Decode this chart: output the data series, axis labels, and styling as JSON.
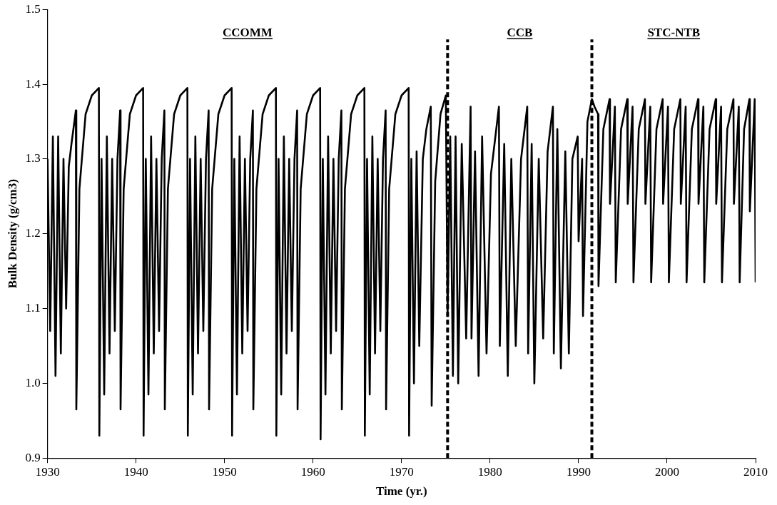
{
  "chart_data": {
    "type": "line",
    "xlabel": "Time (yr.)",
    "ylabel": "Bulk Density (g/cm3)",
    "annotations": [
      "CCOMM",
      "CCB",
      "STC-NTB"
    ],
    "xlim": [
      1930,
      2010
    ],
    "xticks": [
      1930,
      1940,
      1950,
      1960,
      1970,
      1980,
      1990,
      2000,
      2010
    ],
    "ylim": [
      0.9,
      1.5
    ],
    "yticks": [
      0.9,
      {
        "value": 1,
        "label": "1.0"
      },
      1.1,
      1.2,
      1.3,
      1.4,
      1.5
    ],
    "grid": false,
    "legend": false,
    "marker": "none",
    "line_style": "solid",
    "ref_lines": [
      {
        "axis": "x",
        "value": 1975.2,
        "line_style": "dashed",
        "color": "#000000"
      },
      {
        "axis": "x",
        "value": 1991.5,
        "line_style": "dashed",
        "color": "#000000"
      }
    ],
    "series": [
      {
        "color": "#000000",
        "x": [
          1930,
          1930.3,
          1930.6,
          1930.9,
          1931.2,
          1931.5,
          1931.8,
          1932.1,
          1932.4,
          1932.7,
          1933.2,
          1933.25,
          1933.6,
          1934.3,
          1935,
          1935.8,
          1935.85,
          1936.1,
          1936.4,
          1936.7,
          1937,
          1937.3,
          1937.6,
          1937.9,
          1938.2,
          1938.25,
          1938.6,
          1939.3,
          1940,
          1940.8,
          1940.85,
          1941.1,
          1941.4,
          1941.7,
          1942,
          1942.3,
          1942.6,
          1942.9,
          1943.2,
          1943.25,
          1943.6,
          1944.3,
          1945,
          1945.8,
          1945.85,
          1946.1,
          1946.4,
          1946.7,
          1947,
          1947.3,
          1947.6,
          1947.9,
          1948.2,
          1948.25,
          1948.6,
          1949.3,
          1950,
          1950.8,
          1950.85,
          1951.1,
          1951.4,
          1951.7,
          1952,
          1952.3,
          1952.6,
          1952.9,
          1953.2,
          1953.25,
          1953.6,
          1954.3,
          1955,
          1955.8,
          1955.85,
          1956.1,
          1956.4,
          1956.7,
          1957,
          1957.3,
          1957.6,
          1957.9,
          1958.2,
          1958.25,
          1958.6,
          1959.3,
          1960,
          1960.8,
          1960.85,
          1961.1,
          1961.4,
          1961.7,
          1962,
          1962.3,
          1962.6,
          1962.9,
          1963.2,
          1963.25,
          1963.6,
          1964.3,
          1965,
          1965.8,
          1965.85,
          1966.1,
          1966.4,
          1966.7,
          1967,
          1967.3,
          1967.6,
          1967.9,
          1968.2,
          1968.25,
          1968.6,
          1969.3,
          1970,
          1970.8,
          1970.85,
          1971.1,
          1971.4,
          1971.7,
          1972,
          1972.4,
          1972.8,
          1973.3,
          1973.4,
          1973.8,
          1974.4,
          1975,
          1975.2,
          1975.5,
          1975.8,
          1976.1,
          1976.4,
          1976.8,
          1977.3,
          1977.8,
          1977.9,
          1978.3,
          1978.7,
          1979.1,
          1979.6,
          1980.1,
          1981,
          1981.1,
          1981.6,
          1982,
          1982.4,
          1982.9,
          1983.5,
          1984.2,
          1984.3,
          1984.7,
          1985,
          1985.5,
          1986,
          1986.5,
          1987.1,
          1987.2,
          1987.6,
          1988,
          1988.5,
          1988.9,
          1989.3,
          1989.9,
          1990,
          1990.4,
          1990.5,
          1991,
          1991.5,
          1991.8,
          1992.2,
          1992.25,
          1992.8,
          1993.5,
          1993.55,
          1994.1,
          1994.2,
          1994.8,
          1995.5,
          1995.55,
          1996.1,
          1996.2,
          1996.8,
          1997.5,
          1997.55,
          1998.1,
          1998.2,
          1998.8,
          1999.5,
          1999.55,
          2000.1,
          2000.2,
          2000.8,
          2001.5,
          2001.55,
          2002.1,
          2002.2,
          2002.8,
          2003.5,
          2003.55,
          2004.1,
          2004.2,
          2004.8,
          2005.5,
          2005.55,
          2006.1,
          2006.2,
          2006.8,
          2007.5,
          2007.55,
          2008.1,
          2008.2,
          2008.7,
          2009.3,
          2009.35,
          2009.9,
          2010
        ],
        "values": [
          1.3,
          1.07,
          1.33,
          1.01,
          1.33,
          1.04,
          1.3,
          1.1,
          1.29,
          1.32,
          1.365,
          0.965,
          1.26,
          1.36,
          1.385,
          1.395,
          0.93,
          1.3,
          0.985,
          1.33,
          1.04,
          1.3,
          1.07,
          1.3,
          1.365,
          0.965,
          1.26,
          1.36,
          1.385,
          1.395,
          0.93,
          1.3,
          0.985,
          1.33,
          1.04,
          1.3,
          1.07,
          1.3,
          1.365,
          0.965,
          1.26,
          1.36,
          1.385,
          1.395,
          0.93,
          1.3,
          0.985,
          1.33,
          1.04,
          1.3,
          1.07,
          1.3,
          1.365,
          0.965,
          1.26,
          1.36,
          1.385,
          1.395,
          0.93,
          1.3,
          0.985,
          1.33,
          1.04,
          1.3,
          1.07,
          1.3,
          1.365,
          0.965,
          1.26,
          1.36,
          1.385,
          1.395,
          0.93,
          1.3,
          0.985,
          1.33,
          1.04,
          1.3,
          1.07,
          1.3,
          1.365,
          0.965,
          1.26,
          1.36,
          1.385,
          1.395,
          0.925,
          1.3,
          0.985,
          1.33,
          1.04,
          1.3,
          1.07,
          1.3,
          1.365,
          0.965,
          1.26,
          1.36,
          1.385,
          1.395,
          0.93,
          1.3,
          0.985,
          1.33,
          1.04,
          1.3,
          1.07,
          1.3,
          1.365,
          0.965,
          1.26,
          1.36,
          1.385,
          1.395,
          0.93,
          1.3,
          1.0,
          1.31,
          1.05,
          1.3,
          1.34,
          1.37,
          0.97,
          1.27,
          1.36,
          1.385,
          1.09,
          1.33,
          1.01,
          1.33,
          1.0,
          1.32,
          1.06,
          1.37,
          1.06,
          1.31,
          1.01,
          1.33,
          1.04,
          1.28,
          1.37,
          1.05,
          1.32,
          1.01,
          1.3,
          1.05,
          1.3,
          1.37,
          1.04,
          1.32,
          1.0,
          1.3,
          1.06,
          1.31,
          1.37,
          1.04,
          1.34,
          1.02,
          1.31,
          1.04,
          1.3,
          1.33,
          1.19,
          1.3,
          1.09,
          1.35,
          1.38,
          1.37,
          1.36,
          1.13,
          1.34,
          1.38,
          1.24,
          1.37,
          1.135,
          1.34,
          1.38,
          1.24,
          1.37,
          1.135,
          1.34,
          1.38,
          1.24,
          1.37,
          1.135,
          1.34,
          1.38,
          1.24,
          1.37,
          1.135,
          1.34,
          1.38,
          1.24,
          1.37,
          1.135,
          1.34,
          1.38,
          1.24,
          1.37,
          1.135,
          1.34,
          1.38,
          1.24,
          1.37,
          1.135,
          1.34,
          1.38,
          1.24,
          1.37,
          1.135,
          1.34,
          1.38,
          1.23,
          1.38,
          1.135
        ]
      }
    ]
  }
}
